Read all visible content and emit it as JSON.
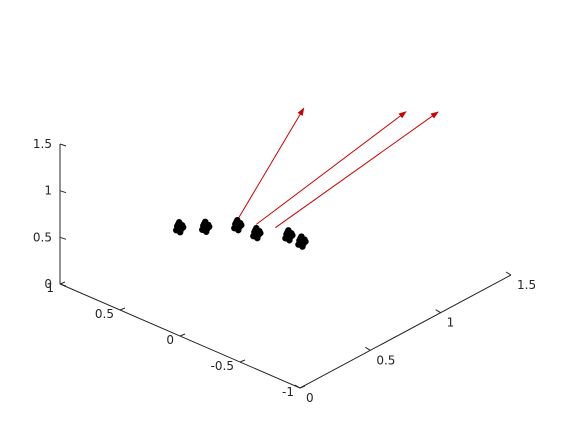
{
  "chart_data": {
    "type": "scatter",
    "title": "",
    "xlabel": "",
    "ylabel": "",
    "zlabel": "",
    "x_ticks": [
      "-1",
      "-0.5",
      "0",
      "0.5",
      "1"
    ],
    "y_ticks": [
      "0",
      "0.5",
      "1",
      "1.5"
    ],
    "z_ticks": [
      "0",
      "0.5",
      "1",
      "1.5"
    ],
    "xlim": [
      -1,
      1
    ],
    "ylim": [
      0,
      1.5
    ],
    "zlim": [
      0,
      1.5
    ],
    "grid": false,
    "points_color": "#000000",
    "vector_color": "#cc0000",
    "point_clusters": [
      {
        "x": 0.3,
        "y": 0.25,
        "z": 0.85
      },
      {
        "x": 0.2,
        "y": 0.35,
        "z": 0.83
      },
      {
        "x": 0.05,
        "y": 0.45,
        "z": 0.85
      },
      {
        "x": -0.05,
        "y": 0.5,
        "z": 0.78
      },
      {
        "x": -0.2,
        "y": 0.6,
        "z": 0.76
      },
      {
        "x": -0.25,
        "y": 0.65,
        "z": 0.68
      }
    ],
    "vectors": [
      {
        "from": [
          0.05,
          0.45,
          0.85
        ],
        "to": [
          0.2,
          1.05,
          1.48
        ]
      },
      {
        "from": [
          -0.05,
          0.5,
          0.82
        ],
        "to": [
          -0.3,
          1.35,
          1.48
        ]
      },
      {
        "from": [
          -0.15,
          0.55,
          0.8
        ],
        "to": [
          -0.45,
          1.45,
          1.48
        ]
      }
    ]
  }
}
